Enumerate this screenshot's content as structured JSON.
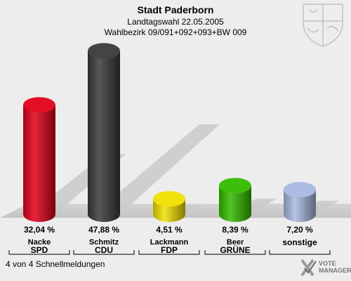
{
  "header": {
    "title": "Stadt Paderborn",
    "subtitle": "Landtagswahl 22.05.2005",
    "district": "Wahlbezirk 09/091+092+093+BW 009"
  },
  "footer": {
    "status": "4 von 4 Schnellmeldungen"
  },
  "logo": {
    "line1": "VOTE",
    "line2": "MANAGER"
  },
  "chart_data": {
    "type": "bar",
    "title": "Stadt Paderborn",
    "categories": [
      "SPD",
      "CDU",
      "FDP",
      "GRÜNE",
      "sonstige"
    ],
    "candidates": [
      "Nacke",
      "Schmitz",
      "Lackmann",
      "Beer",
      ""
    ],
    "values": [
      32.04,
      47.88,
      4.51,
      8.39,
      7.2
    ],
    "value_labels": [
      "32,04 %",
      "47,88 %",
      "4,51 %",
      "8,39 %",
      "7,20 %"
    ],
    "colors": [
      "#e2001a",
      "#3a3a3a",
      "#f0e000",
      "#33bb00",
      "#a8b8e0"
    ],
    "ylim": [
      0,
      50
    ],
    "grid": false
  }
}
